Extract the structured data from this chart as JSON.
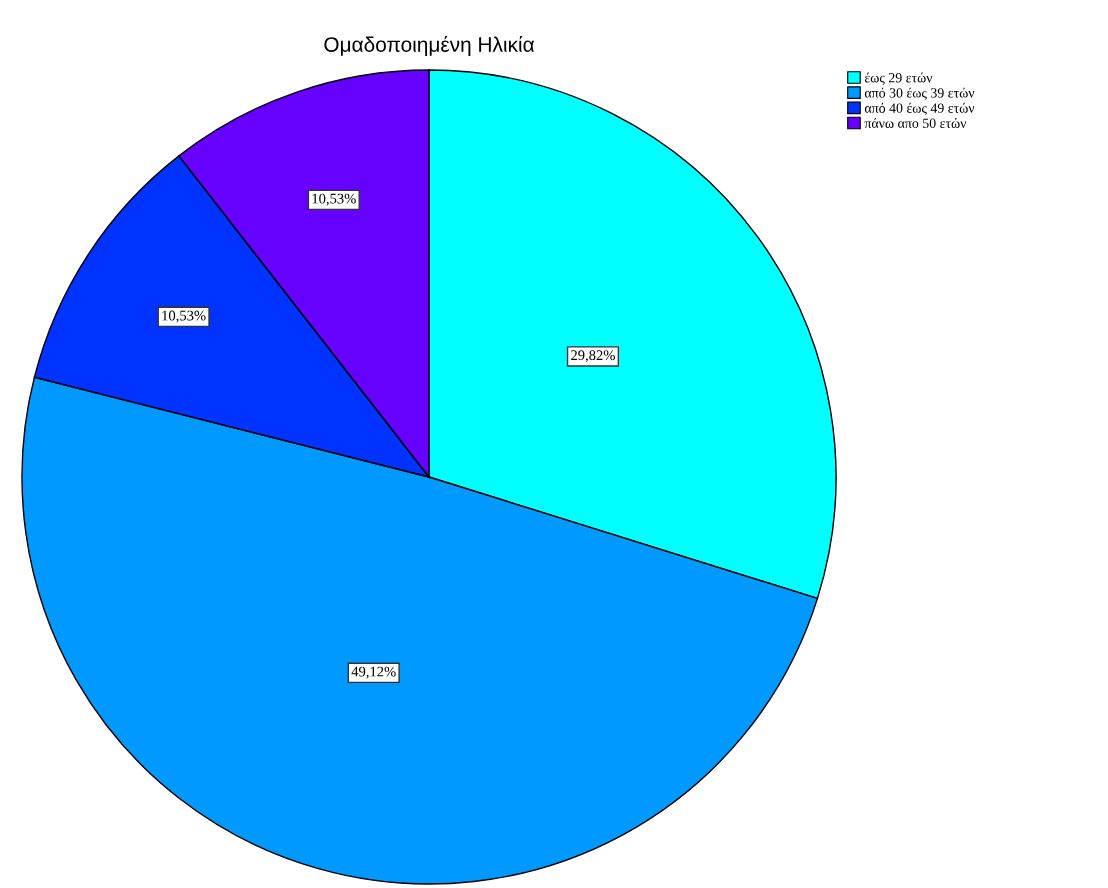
{
  "chart_data": {
    "type": "pie",
    "title": "Ομαδοποιημένη Ηλικία",
    "categories": [
      "έως 29 ετών",
      "από 30 έως 39 ετών",
      "από 40 έως 49 ετών",
      "πάνω απο 50 ετών"
    ],
    "values": [
      29.82,
      49.12,
      10.53,
      10.53
    ],
    "colors": [
      "#00ffff",
      "#0099ff",
      "#0033ff",
      "#6600ff"
    ],
    "value_labels": [
      "29,82%",
      "49,12%",
      "10,53%",
      "10,53%"
    ],
    "legend": "top right"
  }
}
